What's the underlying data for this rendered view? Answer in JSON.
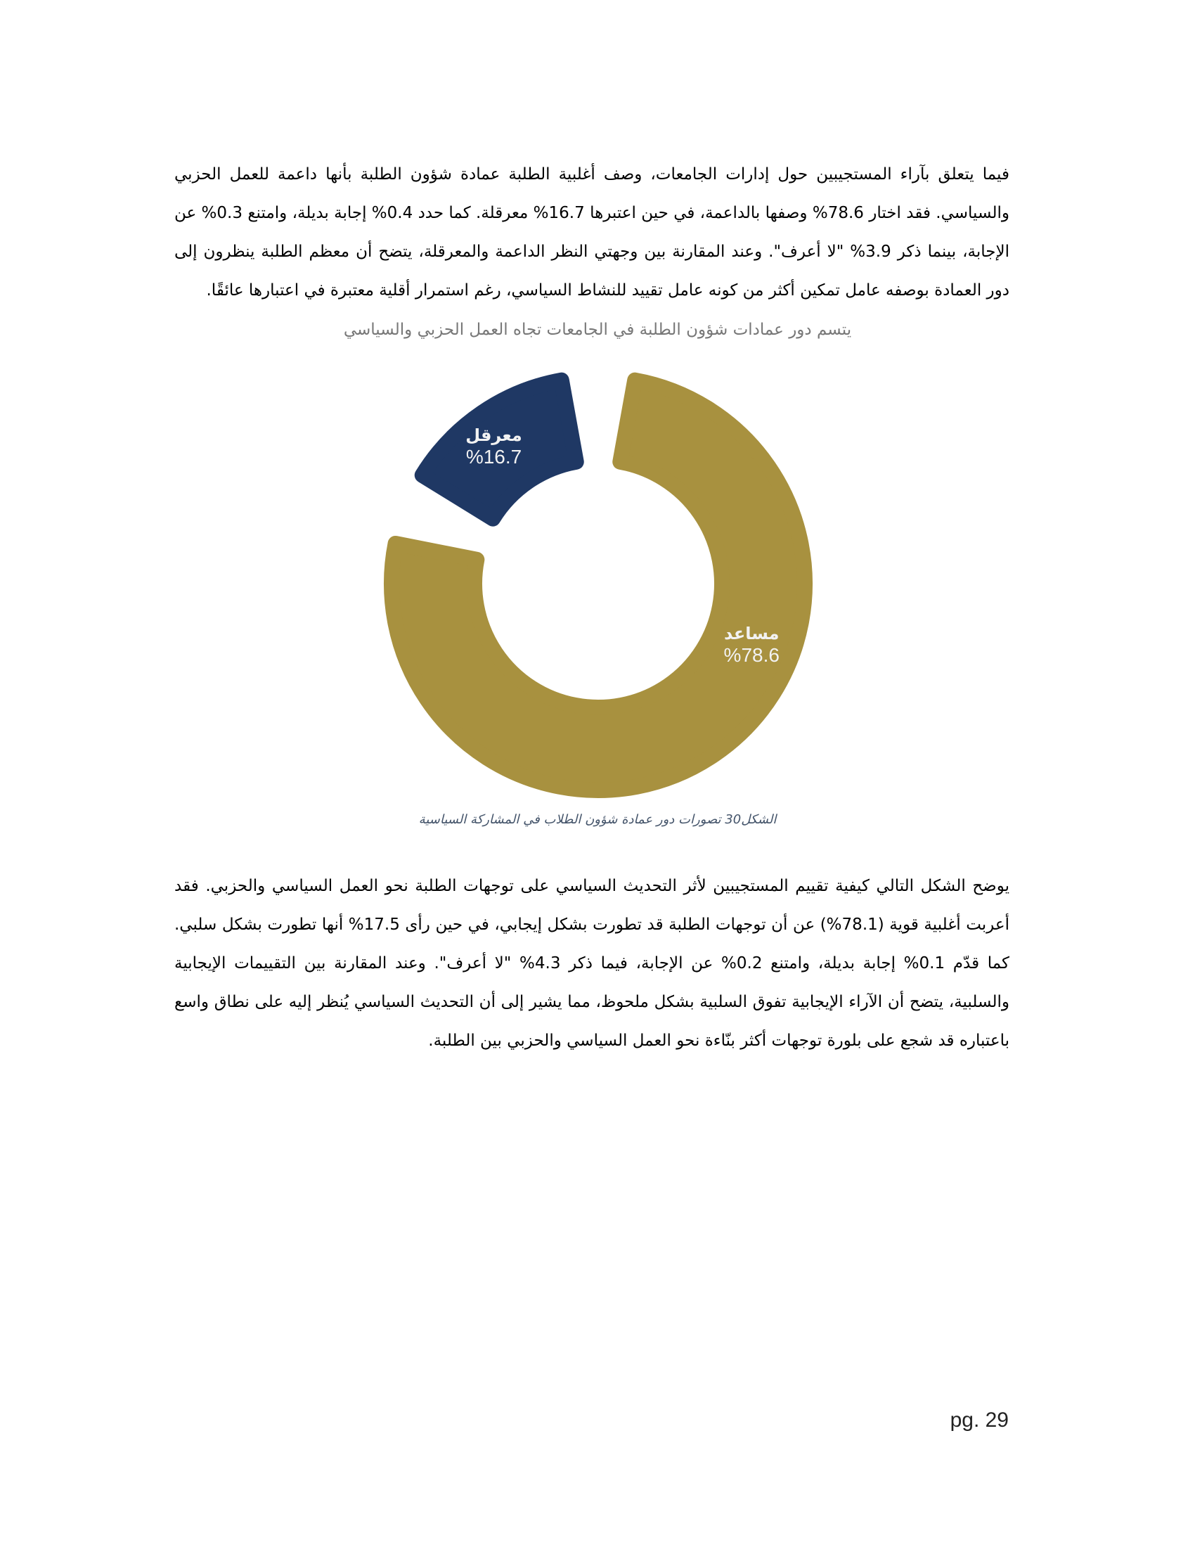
{
  "paragraph_1": "فيما يتعلق بآراء المستجيبين حول إدارات الجامعات، وصف أغلبية الطلبة عمادة شؤون الطلبة بأنها داعمة للعمل الحزبي والسياسي. فقد اختار 78.6% وصفها بالداعمة، في حين اعتبرها 16.7% معرقلة. كما حدد 0.4% إجابة بديلة، وامتنع 0.3% عن الإجابة، بينما ذكر 3.9% \"لا أعرف\". وعند المقارنة بين وجهتي النظر الداعمة والمعرقلة، يتضح أن معظم الطلبة ينظرون إلى دور العمادة بوصفه عامل تمكين أكثر من كونه عامل تقييد للنشاط السياسي، رغم استمرار أقلية معتبرة في اعتبارها عائقًا.",
  "chart_data": {
    "type": "pie",
    "title": "يتسم دور عمادات شؤون الطلبة في الجامعات تجاه العمل الحزبي والسياسي",
    "slices": [
      {
        "name": "مساعد",
        "value": 78.6,
        "label": "%78.6",
        "color": "#a8913f"
      },
      {
        "name": "معرقل",
        "value": 16.7,
        "label": "%16.7",
        "color": "#1f3864"
      }
    ]
  },
  "caption": "الشكل30 تصورات دور عمادة شؤون الطلاب في المشاركة السياسية",
  "paragraph_2": "يوضح الشكل التالي كيفية تقييم المستجيبين لأثر التحديث السياسي على توجهات الطلبة نحو العمل السياسي والحزبي. فقد أعربت أغلبية قوية (78.1%) عن أن توجهات الطلبة قد تطورت بشكل إيجابي، في حين رأى 17.5% أنها تطورت بشكل سلبي. كما قدّم 0.1% إجابة بديلة، وامتنع 0.2% عن الإجابة، فيما ذكر 4.3% \"لا أعرف\". وعند المقارنة بين التقييمات الإيجابية والسلبية، يتضح أن الآراء الإيجابية تفوق السلبية بشكل ملحوظ، مما يشير إلى أن التحديث السياسي يُنظر إليه على نطاق واسع باعتباره قد شجع على بلورة توجهات أكثر بنّاءة نحو العمل السياسي والحزبي بين الطلبة.",
  "page_number": "pg. 29"
}
